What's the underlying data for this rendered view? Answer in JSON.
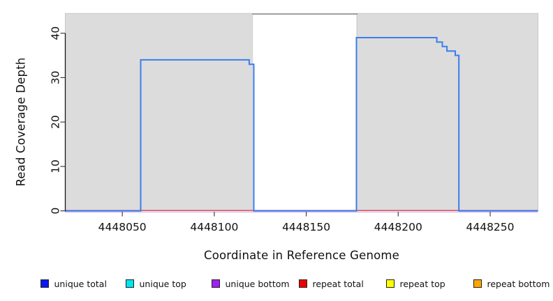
{
  "figure": {
    "background": "#ffffff",
    "axis_color": "#1a1a1a",
    "tick_color": "#404040",
    "shade_fill": "#dcdcdc",
    "shade_border": "#c8c8c8",
    "gap_top_line_color": "#8a8a8a"
  },
  "chart_data": {
    "type": "line",
    "title": "",
    "xlabel": "Coordinate in Reference Genome",
    "ylabel": "Read Coverage Depth",
    "xlim": [
      4448019,
      4448276
    ],
    "ylim": [
      0,
      44.45
    ],
    "xticks": [
      4448050,
      4448100,
      4448150,
      4448200,
      4448250
    ],
    "yticks": [
      0,
      10,
      20,
      30,
      40
    ],
    "grid": false,
    "legend_position": "bottom",
    "regions": [
      {
        "name": "unique-region-1",
        "x0": 4448019,
        "x1": 4448121,
        "fill": "#dcdcdc",
        "stroke": "#c8c8c8",
        "top_line": false
      },
      {
        "name": "repeat-region-gap",
        "x0": 4448121,
        "x1": 4448177.5,
        "fill": "#ffffff",
        "stroke": "none",
        "top_line": true
      },
      {
        "name": "unique-region-2",
        "x0": 4448177.5,
        "x1": 4448276,
        "fill": "#dcdcdc",
        "stroke": "#c8c8c8",
        "top_line": false
      }
    ],
    "series": [
      {
        "name": "unique bottom",
        "color": "#c4b0f2",
        "width": 1.1,
        "offset_y": 1.7,
        "points": [
          [
            4448019,
            0
          ],
          [
            4448276,
            0
          ]
        ]
      },
      {
        "name": "repeat total",
        "color": "#e04858",
        "width": 1.5,
        "offset_y": -0.5,
        "points": [
          [
            4448019,
            0
          ],
          [
            4448276,
            0
          ]
        ]
      },
      {
        "name": "unique total",
        "color": "#3b7dec",
        "width": 2,
        "offset_y": 0,
        "points": [
          [
            4448019,
            0
          ],
          [
            4448060,
            0
          ],
          [
            4448060,
            34
          ],
          [
            4448119,
            34
          ],
          [
            4448119,
            33
          ],
          [
            4448121.5,
            33
          ],
          [
            4448121.5,
            0
          ],
          [
            4448177.3,
            0
          ],
          [
            4448177.3,
            39
          ],
          [
            4448221,
            39
          ],
          [
            4448221,
            38
          ],
          [
            4448224,
            38
          ],
          [
            4448224,
            37
          ],
          [
            4448226.5,
            37
          ],
          [
            4448226.5,
            36
          ],
          [
            4448231,
            36
          ],
          [
            4448231,
            35
          ],
          [
            4448233,
            35
          ],
          [
            4448233,
            0
          ],
          [
            4448276,
            0
          ]
        ]
      }
    ],
    "legend": [
      {
        "label": "unique total",
        "color": "#0b16f0"
      },
      {
        "label": "unique top",
        "color": "#00e5ee"
      },
      {
        "label": "unique bottom",
        "color": "#a020f0"
      },
      {
        "label": "repeat total",
        "color": "#ee0000"
      },
      {
        "label": "repeat top",
        "color": "#ffff00"
      },
      {
        "label": "repeat bottom",
        "color": "#ffa500"
      }
    ]
  }
}
